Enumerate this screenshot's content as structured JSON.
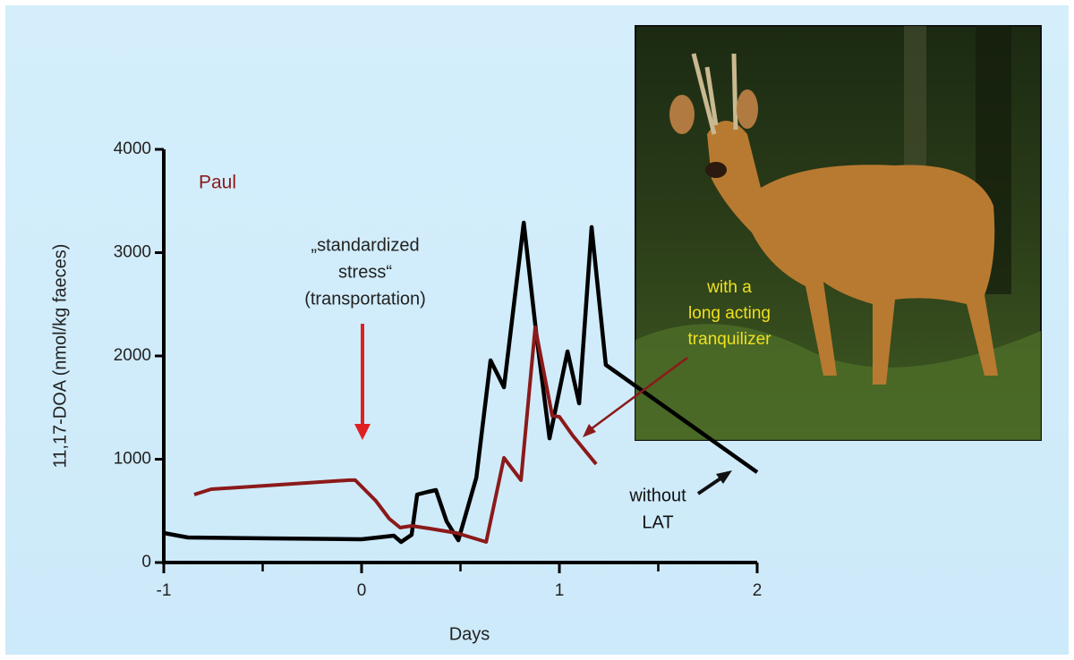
{
  "chart_data": {
    "type": "line",
    "title": "Paul",
    "ylabel": "11,17-DOA  (nmol/kg faeces)",
    "xlabel": "Days",
    "xlim": [
      -1,
      2
    ],
    "ylim": [
      0,
      4000
    ],
    "xticks": [
      -1,
      0,
      1,
      2
    ],
    "xminorticks": [
      -0.5,
      0.5,
      1.5
    ],
    "yticks": [
      0,
      1000,
      2000,
      3000,
      4000
    ],
    "series": [
      {
        "color": "#000000",
        "x": [
          -1,
          -0.878,
          -0.47,
          0,
          0.163,
          0.2,
          0.253,
          0.281,
          0.335,
          0.376,
          0.43,
          0.489,
          0.58,
          0.652,
          0.72,
          0.82,
          0.887,
          0.95,
          1.041,
          1.1,
          1.163,
          1.235,
          2
        ],
        "values": [
          286,
          242,
          234,
          225,
          260,
          199,
          268,
          658,
          684,
          701,
          398,
          216,
          822,
          1957,
          1697,
          3290,
          2156,
          1203,
          2043,
          1541,
          3247,
          1913,
          874
        ]
      },
      {
        "color": "#8b1a1a",
        "x": [
          -0.846,
          -0.76,
          -0.063,
          -0.032,
          0.072,
          0.14,
          0.195,
          0.253,
          0.344,
          0.48,
          0.63,
          0.72,
          0.806,
          0.878,
          0.964,
          1.0,
          1.068,
          1.186
        ],
        "values": [
          658,
          710,
          797,
          797,
          597,
          424,
          338,
          355,
          329,
          286,
          199,
          1013,
          797,
          2277,
          1420,
          1411,
          1229,
          952
        ]
      }
    ],
    "annotations": [
      {
        "lines": [
          "„standardized",
          "stress“",
          "(transportation)"
        ],
        "color": "#222222"
      },
      {
        "lines": [
          "with  a",
          "long acting",
          "tranquilizer"
        ],
        "color": "#f0e020"
      },
      {
        "lines": [
          "without",
          "LAT"
        ],
        "color": "#111111"
      }
    ]
  }
}
